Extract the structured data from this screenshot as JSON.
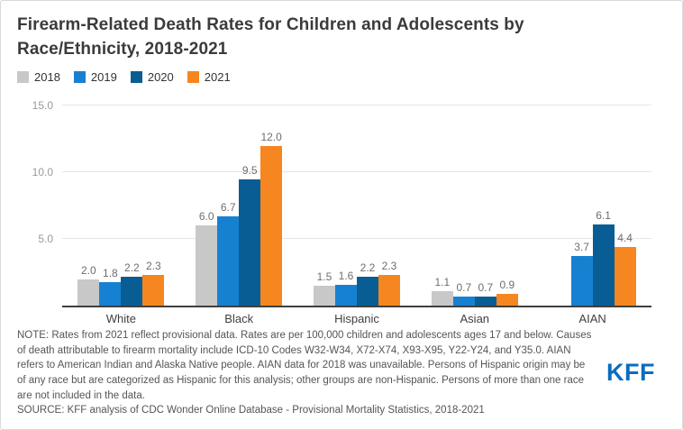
{
  "header": {
    "title": "Firearm-Related Death Rates for Children and Adolescents by Race/Ethnicity, 2018-2021"
  },
  "colors": {
    "series_2018": "#c8c8c8",
    "series_2019": "#1781d1",
    "series_2020": "#085d94",
    "series_2021": "#f6861f",
    "gridline": "#e5e5e5",
    "axis_line": "#3f3f3f",
    "kff_blue": "#0b6cbf"
  },
  "chart_data": {
    "type": "bar",
    "title": "Firearm-Related Death Rates for Children and Adolescents by Race/Ethnicity, 2018-2021",
    "categories": [
      "White",
      "Black",
      "Hispanic",
      "Asian",
      "AIAN"
    ],
    "series": [
      {
        "name": "2018",
        "color": "#c8c8c8",
        "values": [
          2.0,
          6.0,
          1.5,
          1.1,
          null
        ]
      },
      {
        "name": "2019",
        "color": "#1781d1",
        "values": [
          1.8,
          6.7,
          1.6,
          0.7,
          3.7
        ]
      },
      {
        "name": "2020",
        "color": "#085d94",
        "values": [
          2.2,
          9.5,
          2.2,
          0.7,
          6.1
        ]
      },
      {
        "name": "2021",
        "color": "#f6861f",
        "values": [
          2.3,
          12.0,
          2.3,
          0.9,
          4.4
        ]
      }
    ],
    "xlabel": "",
    "ylabel": "",
    "ylim": [
      0,
      15
    ],
    "yticks": [
      {
        "value": 5,
        "label": "5.0"
      },
      {
        "value": 10,
        "label": "10.0"
      },
      {
        "value": 15,
        "label": "15.0"
      }
    ],
    "grid": true,
    "legend_position": "top-left",
    "value_labels": true
  },
  "footer": {
    "note": "NOTE: Rates from 2021 reflect provisional data. Rates are per 100,000 children and adolescents ages 17 and below. Causes of death attributable to firearm mortality include ICD-10 Codes W32-W34, X72-X74, X93-X95, Y22-Y24, and Y35.0. AIAN refers to American Indian and Alaska Native people. AIAN data for 2018 was unavailable. Persons of Hispanic origin may be of any race but are categorized as Hispanic for this analysis; other groups are non-Hispanic. Persons of more than one race are not included in the data.",
    "source": "SOURCE: KFF analysis of CDC Wonder Online Database - Provisional Mortality Statistics, 2018-2021",
    "logo": "KFF"
  }
}
